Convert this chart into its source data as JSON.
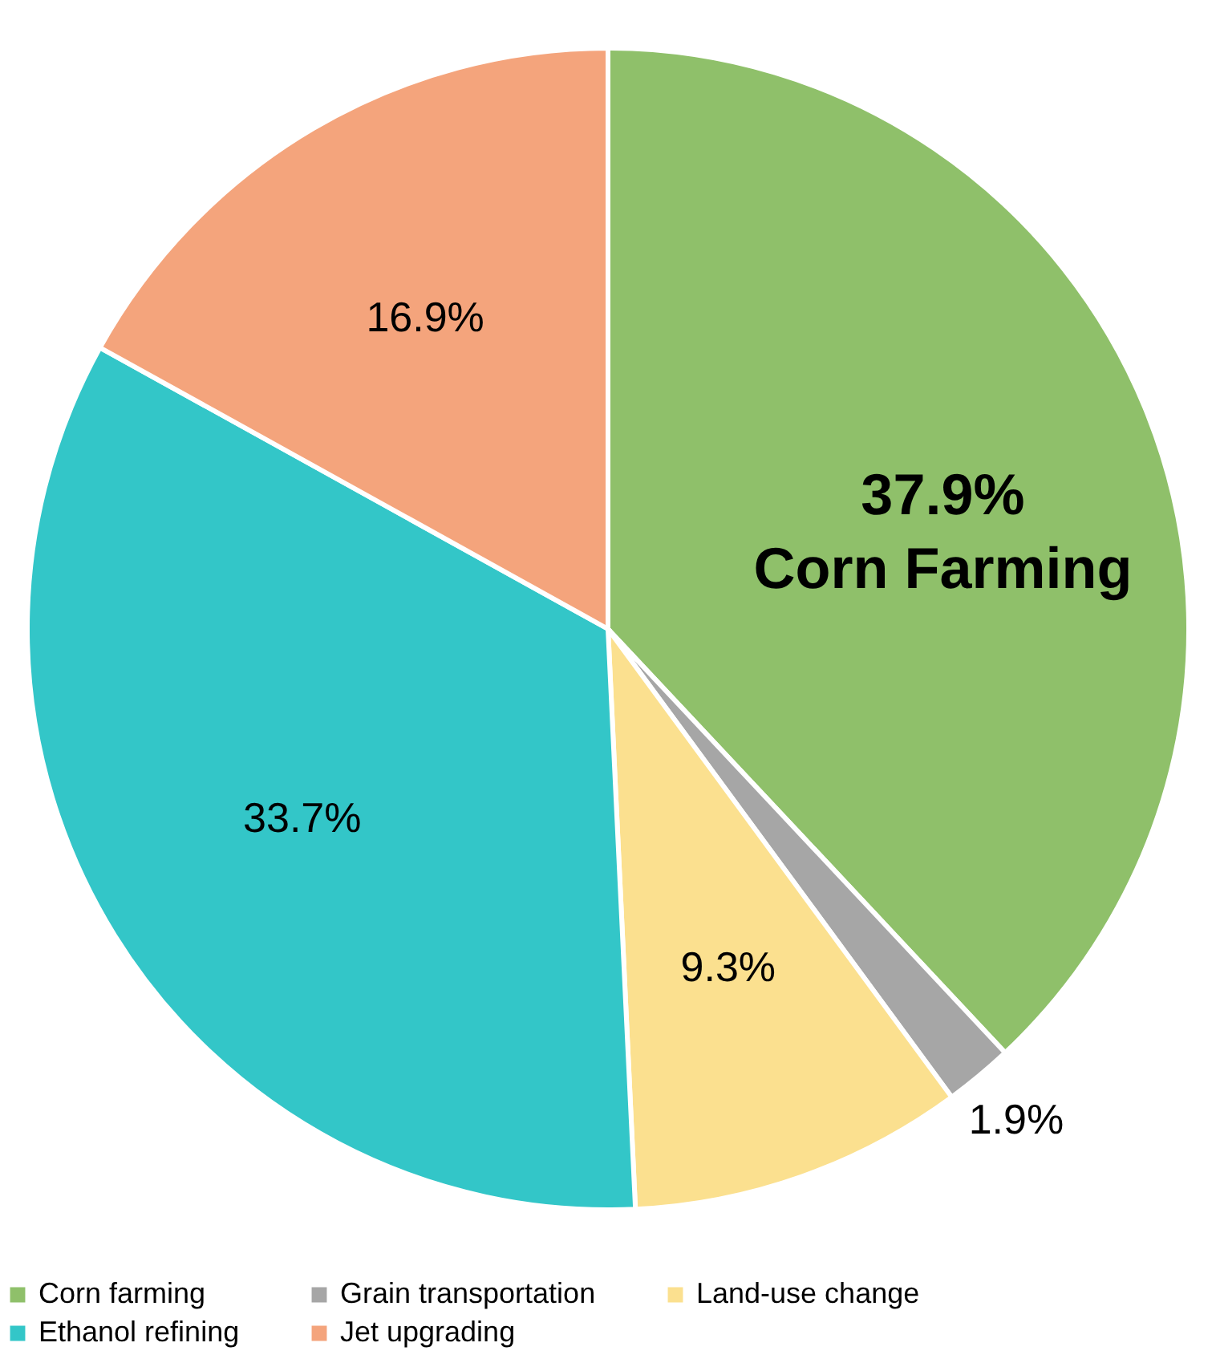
{
  "chart_data": {
    "type": "pie",
    "categories": [
      "Corn farming",
      "Grain transportation",
      "Land-use change",
      "Ethanol refining",
      "Jet upgrading"
    ],
    "values": [
      37.9,
      1.9,
      9.3,
      33.7,
      16.9
    ],
    "colors": [
      "#8fc06a",
      "#a6a6a6",
      "#fbe08f",
      "#33c6c8",
      "#f4a47c"
    ],
    "value_labels": [
      "37.9%\nCorn Farming",
      "1.9%",
      "9.3%",
      "33.7%",
      "16.9%"
    ],
    "legend": "bottom"
  }
}
